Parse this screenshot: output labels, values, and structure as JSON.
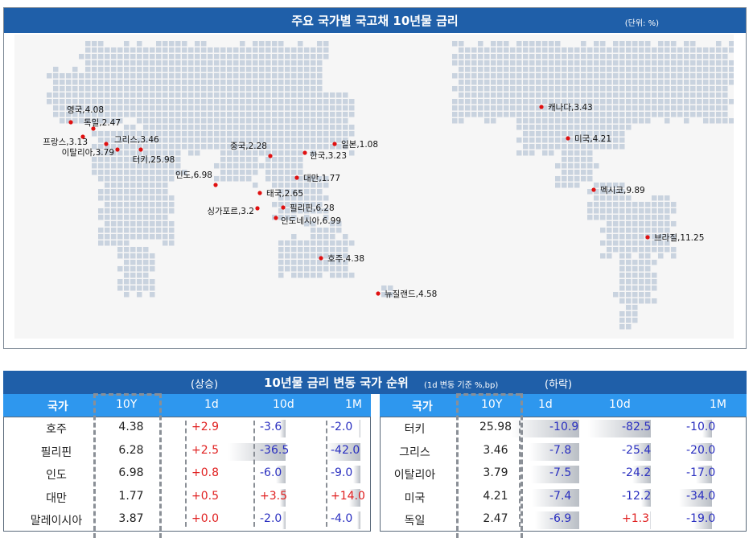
{
  "map_panel": {
    "title": "주요 국가별 국고채 10년물 금리",
    "unit": "(단위: %)"
  },
  "chart_data": {
    "type": "scatter",
    "title": "주요 국가별 국고채 10년물 금리",
    "unit": "%",
    "points": [
      {
        "country": "영국",
        "value": "4.08"
      },
      {
        "country": "독일",
        "value": "2.47"
      },
      {
        "country": "프랑스",
        "value": "3.13"
      },
      {
        "country": "그리스",
        "value": "3.46"
      },
      {
        "country": "이탈리아",
        "value": "3.79"
      },
      {
        "country": "터키",
        "value": "25.98"
      },
      {
        "country": "인도",
        "value": "6.98"
      },
      {
        "country": "중국",
        "value": "2.28"
      },
      {
        "country": "일본",
        "value": "1.08"
      },
      {
        "country": "한국",
        "value": "3.23"
      },
      {
        "country": "대만",
        "value": "1.77"
      },
      {
        "country": "태국",
        "value": "2.65"
      },
      {
        "country": "필리핀",
        "value": "6.28"
      },
      {
        "country": "싱가포르",
        "value": "3.2"
      },
      {
        "country": "인도네시아",
        "value": "6.99"
      },
      {
        "country": "호주",
        "value": "4.38"
      },
      {
        "country": "뉴질랜드",
        "value": "4.58"
      },
      {
        "country": "캐나다",
        "value": "3.43"
      },
      {
        "country": "미국",
        "value": "4.21"
      },
      {
        "country": "멕시코",
        "value": "9.89"
      },
      {
        "country": "브라질",
        "value": "11.25"
      }
    ]
  },
  "ranking": {
    "up_label": "(상승)",
    "title": "10년물 금리 변동 국가 순위",
    "subtitle": "(1d 변동 기준 %,bp)",
    "down_label": "(하락)",
    "headers": {
      "country": "국가",
      "y10": "10Y",
      "d1": "1d",
      "d10": "10d",
      "m1": "1M"
    },
    "rising": [
      {
        "country": "호주",
        "y10": "4.38",
        "d1": "+2.9",
        "d10": "-3.6",
        "m1": "-2.0"
      },
      {
        "country": "필리핀",
        "y10": "6.28",
        "d1": "+2.5",
        "d10": "-36.5",
        "m1": "-42.0"
      },
      {
        "country": "인도",
        "y10": "6.98",
        "d1": "+0.8",
        "d10": "-6.0",
        "m1": "-9.0"
      },
      {
        "country": "대만",
        "y10": "1.77",
        "d1": "+0.5",
        "d10": "+3.5",
        "m1": "+14.0"
      },
      {
        "country": "말레이시아",
        "y10": "3.87",
        "d1": "+0.0",
        "d10": "-2.0",
        "m1": "-4.0"
      }
    ],
    "falling": [
      {
        "country": "터키",
        "y10": "25.98",
        "d1": "-10.9",
        "d10": "-82.5",
        "m1": "-10.0"
      },
      {
        "country": "그리스",
        "y10": "3.46",
        "d1": "-7.8",
        "d10": "-25.4",
        "m1": "-20.0"
      },
      {
        "country": "이탈리아",
        "y10": "3.79",
        "d1": "-7.5",
        "d10": "-24.2",
        "m1": "-17.0"
      },
      {
        "country": "미국",
        "y10": "4.21",
        "d1": "-7.4",
        "d10": "-12.2",
        "m1": "-34.0"
      },
      {
        "country": "독일",
        "y10": "2.47",
        "d1": "-6.9",
        "d10": "+1.3",
        "m1": "-19.0"
      }
    ]
  }
}
